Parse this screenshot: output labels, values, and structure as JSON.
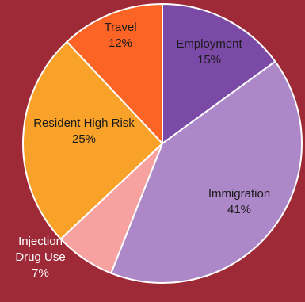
{
  "chart_data": {
    "type": "pie",
    "title": "",
    "start_angle_deg": 0,
    "direction": "clockwise",
    "slices": [
      {
        "label": "Employment",
        "value": 15,
        "value_label": "15%",
        "color": "#7b4aa7",
        "text_color": "#1a1a1a",
        "label_inside": true
      },
      {
        "label": "Immigration",
        "value": 41,
        "value_label": "41%",
        "color": "#ad88c8",
        "text_color": "#1a1a1a",
        "label_inside": true
      },
      {
        "label": "Injection Drug Use",
        "value": 7,
        "value_label": "7%",
        "color": "#f7a1a1",
        "text_color": "#ffffff",
        "label_inside": false
      },
      {
        "label": "Resident High Risk",
        "value": 25,
        "value_label": "25%",
        "color": "#f9a22a",
        "text_color": "#1a1a1a",
        "label_inside": true
      },
      {
        "label": "Travel",
        "value": 12,
        "value_label": "12%",
        "color": "#fb6425",
        "text_color": "#1a1a1a",
        "label_inside": true
      }
    ]
  }
}
